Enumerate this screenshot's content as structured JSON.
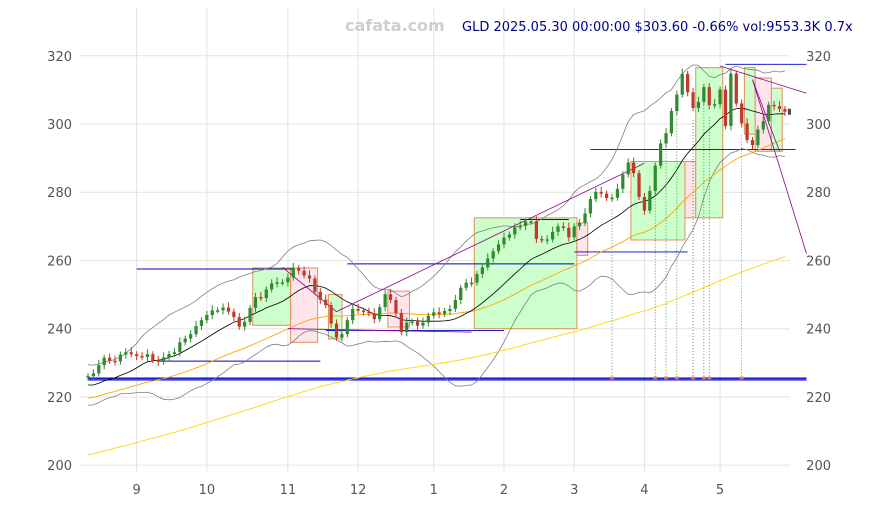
{
  "chart_data": {
    "type": "candlestick",
    "watermark": "cafata.com",
    "header": "GLD 2025.05.30 00:00:00 $303.60 -0.66% vol:9553.3K 0.7x",
    "ylim": [
      198,
      334
    ],
    "y_ticks": [
      200,
      220,
      240,
      260,
      280,
      300,
      320
    ],
    "y_tick_labels": [
      "200",
      "220",
      "240",
      "260",
      "280",
      "300",
      "320"
    ],
    "x_tick_labels": [
      "9",
      "10",
      "11",
      "12",
      "1",
      "2",
      "3",
      "4",
      "5"
    ],
    "grid": true,
    "colors": {
      "up": "#2e8b2e",
      "down": "#c0392b",
      "ma_short": "#000000",
      "ma_mid": "#ffa500",
      "ma_long": "#ffd700",
      "band": "#808080",
      "box_up_fill": "#ccffcc",
      "box_down_fill": "#ffe4ec",
      "box_border": "#e0905a",
      "levels": "#0000cd",
      "trend": "#8b008b",
      "signal": "#008000"
    },
    "series": {
      "close": [
        226.1,
        226.9,
        229.3,
        231.5,
        230.6,
        230.4,
        232.4,
        233.1,
        232.5,
        232.0,
        231.7,
        232.5,
        230.8,
        230.3,
        231.6,
        232.6,
        233.1,
        236.0,
        237.1,
        238.4,
        240.8,
        242.5,
        244.0,
        245.4,
        245.4,
        246.2,
        245.0,
        243.4,
        240.6,
        242.0,
        246.1,
        249.3,
        249.0,
        251.5,
        253.3,
        253.6,
        253.6,
        255.0,
        257.8,
        257.0,
        255.6,
        254.7,
        250.8,
        248.5,
        246.9,
        241.5,
        237.4,
        238.4,
        242.5,
        245.8,
        245.3,
        245.0,
        244.5,
        242.8,
        246.3,
        250.1,
        248.4,
        244.6,
        239.0,
        241.8,
        242.1,
        240.9,
        241.8,
        243.8,
        244.8,
        244.3,
        245.2,
        245.8,
        248.4,
        252.0,
        253.5,
        253.5,
        256.0,
        258.0,
        260.6,
        262.7,
        264.7,
        266.7,
        267.6,
        269.7,
        270.1,
        271.4,
        271.5,
        266.3,
        266.0,
        266.2,
        268.4,
        270.0,
        269.6,
        266.8,
        270.0,
        271.0,
        273.8,
        278.0,
        280.1,
        279.6,
        278.3,
        278.4,
        281.0,
        285.2,
        288.7,
        285.6,
        278.6,
        274.6,
        280.4,
        287.8,
        294.3,
        297.3,
        303.8,
        308.6,
        314.7,
        309.3,
        304.7,
        306.5,
        310.8,
        305.5,
        305.8,
        310.1,
        299.4,
        314.8,
        306.0,
        300.2,
        295.3,
        293.8,
        298.4,
        300.8,
        305.6,
        305.2,
        304.4,
        303.6
      ],
      "ma_short": [
        223.5,
        223.5,
        224.0,
        224.7,
        225.2,
        225.6,
        226.3,
        226.9,
        227.6,
        228.5,
        229.5,
        230.3,
        230.6,
        230.8,
        231.0,
        231.6,
        232.1,
        232.7,
        233.6,
        234.5,
        235.4,
        236.3,
        237.3,
        238.3,
        239.3,
        240.2,
        241.1,
        241.9,
        242.4,
        243.0,
        243.8,
        244.6,
        245.3,
        246.1,
        246.7,
        247.3,
        248.0,
        249.0,
        250.1,
        251.2,
        252.0,
        252.6,
        252.6,
        252.4,
        251.9,
        251.0,
        249.9,
        248.8,
        247.9,
        247.2,
        246.5,
        245.9,
        245.1,
        244.2,
        243.9,
        243.9,
        243.8,
        243.4,
        242.7,
        242.4,
        242.4,
        242.3,
        242.2,
        242.2,
        242.2,
        242.2,
        242.3,
        242.5,
        242.9,
        243.6,
        244.5,
        245.3,
        246.4,
        247.6,
        248.9,
        250.2,
        251.6,
        253.1,
        254.6,
        256.1,
        257.5,
        259.0,
        260.3,
        261.1,
        261.8,
        262.6,
        263.4,
        264.1,
        264.7,
        265.1,
        265.6,
        266.2,
        267.0,
        268.0,
        269.2,
        270.3,
        271.2,
        272.1,
        273.0,
        274.1,
        275.4,
        276.4,
        277.0,
        277.3,
        277.9,
        278.9,
        280.4,
        282.1,
        284.2,
        286.6,
        289.3,
        291.4,
        293.2,
        295.0,
        297.0,
        298.5,
        299.9,
        301.6,
        302.5,
        303.9,
        304.5,
        304.6,
        304.3,
        303.8,
        303.4,
        302.9,
        302.7,
        302.9,
        303.0,
        303.0
      ],
      "ma_mid": [
        219.6,
        219.9,
        220.3,
        220.8,
        221.2,
        221.6,
        222.1,
        222.5,
        223.0,
        223.4,
        223.9,
        224.3,
        224.7,
        225.0,
        225.4,
        225.8,
        226.3,
        226.8,
        227.3,
        227.9,
        228.5,
        229.1,
        229.8,
        230.5,
        231.2,
        231.9,
        232.5,
        233.2,
        233.7,
        234.3,
        235.0,
        235.7,
        236.4,
        237.1,
        237.8,
        238.5,
        239.2,
        239.9,
        240.7,
        241.4,
        242.0,
        242.6,
        243.0,
        243.3,
        243.6,
        243.7,
        243.7,
        243.7,
        243.8,
        243.9,
        244.1,
        244.2,
        244.2,
        244.3,
        244.3,
        244.5,
        244.6,
        244.6,
        244.5,
        244.4,
        244.3,
        244.2,
        244.2,
        244.2,
        244.2,
        244.2,
        244.2,
        244.3,
        244.4,
        244.7,
        244.9,
        245.1,
        245.5,
        246.0,
        246.5,
        247.1,
        247.8,
        248.5,
        249.3,
        250.1,
        251.0,
        251.8,
        252.7,
        253.4,
        254.1,
        254.8,
        255.6,
        256.3,
        257.1,
        257.7,
        258.4,
        259.1,
        259.8,
        260.7,
        261.6,
        262.5,
        263.2,
        263.9,
        264.7,
        265.5,
        266.5,
        267.3,
        267.9,
        268.3,
        269.0,
        269.9,
        271.0,
        272.3,
        273.7,
        275.3,
        277.1,
        278.6,
        280.0,
        281.4,
        282.9,
        284.1,
        285.3,
        286.6,
        287.6,
        288.8,
        289.7,
        290.5,
        291.1,
        291.6,
        292.3,
        292.9,
        293.7,
        294.4,
        295.1,
        295.7
      ],
      "ma_long": [
        203.0,
        203.4,
        203.8,
        204.2,
        204.6,
        205.0,
        205.4,
        205.8,
        206.2,
        206.6,
        207.1,
        207.5,
        207.9,
        208.3,
        208.8,
        209.2,
        209.6,
        210.1,
        210.5,
        211.0,
        211.5,
        212.0,
        212.5,
        213.0,
        213.5,
        214.0,
        214.5,
        215.0,
        215.5,
        216.0,
        216.5,
        217.0,
        217.5,
        218.1,
        218.6,
        219.1,
        219.6,
        220.1,
        220.6,
        221.1,
        221.6,
        222.1,
        222.5,
        223.0,
        223.4,
        223.8,
        224.2,
        224.5,
        224.9,
        225.3,
        225.6,
        226.0,
        226.3,
        226.6,
        226.9,
        227.3,
        227.6,
        227.8,
        228.1,
        228.3,
        228.6,
        228.8,
        229.1,
        229.3,
        229.6,
        229.8,
        230.1,
        230.3,
        230.6,
        230.9,
        231.2,
        231.5,
        231.8,
        232.2,
        232.5,
        232.9,
        233.3,
        233.7,
        234.1,
        234.5,
        234.9,
        235.4,
        235.8,
        236.2,
        236.6,
        237.0,
        237.5,
        237.9,
        238.3,
        238.7,
        239.1,
        239.5,
        240.0,
        240.4,
        240.9,
        241.4,
        241.9,
        242.3,
        242.8,
        243.3,
        243.8,
        244.3,
        244.8,
        245.2,
        245.7,
        246.3,
        246.8,
        247.4,
        248.1,
        248.7,
        249.4,
        250.1,
        250.7,
        251.4,
        252.1,
        252.7,
        253.4,
        254.1,
        254.7,
        255.4,
        256.0,
        256.6,
        257.2,
        257.8,
        258.3,
        258.9,
        259.5,
        260.0,
        260.6,
        261.1
      ]
    },
    "zones": [
      {
        "x0": 30.5,
        "x1": 37.5,
        "y0": 241.0,
        "y1": 257.8,
        "dir": "up"
      },
      {
        "x0": 37.5,
        "x1": 42.5,
        "y0": 236.0,
        "y1": 257.8,
        "dir": "down"
      },
      {
        "x0": 44.5,
        "x1": 47.0,
        "y0": 237.0,
        "y1": 250.0,
        "dir": "up"
      },
      {
        "x0": 55.5,
        "x1": 59.5,
        "y0": 240.5,
        "y1": 251.0,
        "dir": "down"
      },
      {
        "x0": 71.5,
        "x1": 90.5,
        "y0": 240.0,
        "y1": 272.5,
        "dir": "up"
      },
      {
        "x0": 90.5,
        "x1": 92.5,
        "y0": 261.5,
        "y1": 271.0,
        "dir": "down"
      },
      {
        "x0": 100.5,
        "x1": 110.5,
        "y0": 266.0,
        "y1": 289.0,
        "dir": "up"
      },
      {
        "x0": 110.5,
        "x1": 112.5,
        "y0": 272.5,
        "y1": 289.0,
        "dir": "down"
      },
      {
        "x0": 112.5,
        "x1": 117.5,
        "y0": 272.5,
        "y1": 316.5,
        "dir": "up"
      },
      {
        "x0": 121.5,
        "x1": 123.5,
        "y0": 297.0,
        "y1": 316.5,
        "dir": "up"
      },
      {
        "x0": 123.5,
        "x1": 126.5,
        "y0": 292.0,
        "y1": 313.5,
        "dir": "down"
      },
      {
        "x0": 126.5,
        "x1": 128.5,
        "y0": 292.0,
        "y1": 310.5,
        "dir": "up"
      }
    ],
    "levels": [
      {
        "x0": 0,
        "x1": 133,
        "y": 225.5
      },
      {
        "x0": 0,
        "x1": 133,
        "y": 225.0
      },
      {
        "x0": 9,
        "x1": 38,
        "y": 257.5
      },
      {
        "x0": 13,
        "x1": 43,
        "y": 230.5
      },
      {
        "x0": 44,
        "x1": 77,
        "y": 239.5
      },
      {
        "x0": 48,
        "x1": 90,
        "y": 259.0
      },
      {
        "x0": 80,
        "x1": 89,
        "y": 272.0
      },
      {
        "x0": 90,
        "x1": 111,
        "y": 262.5
      },
      {
        "x0": 93,
        "x1": 131,
        "y": 292.5
      },
      {
        "x0": 118,
        "x1": 133,
        "y": 317.5
      }
    ],
    "trend_lines": [
      {
        "x0": 36,
        "y0": 258.0,
        "x1": 46,
        "y1": 245.0
      },
      {
        "x0": 46,
        "y0": 245.0,
        "x1": 103,
        "y1": 288.5
      },
      {
        "x0": 37,
        "y0": 240.0,
        "x1": 71,
        "y1": 239.0
      },
      {
        "x0": 117,
        "y0": 317.0,
        "x1": 133,
        "y1": 309.0
      },
      {
        "x0": 123,
        "y0": 313.0,
        "x1": 133,
        "y1": 262.0
      },
      {
        "x0": 123,
        "y0": 313.0,
        "x1": 128,
        "y1": 292.0
      }
    ],
    "signal_x": [
      97,
      105,
      107,
      109,
      112,
      114,
      115,
      121
    ]
  }
}
